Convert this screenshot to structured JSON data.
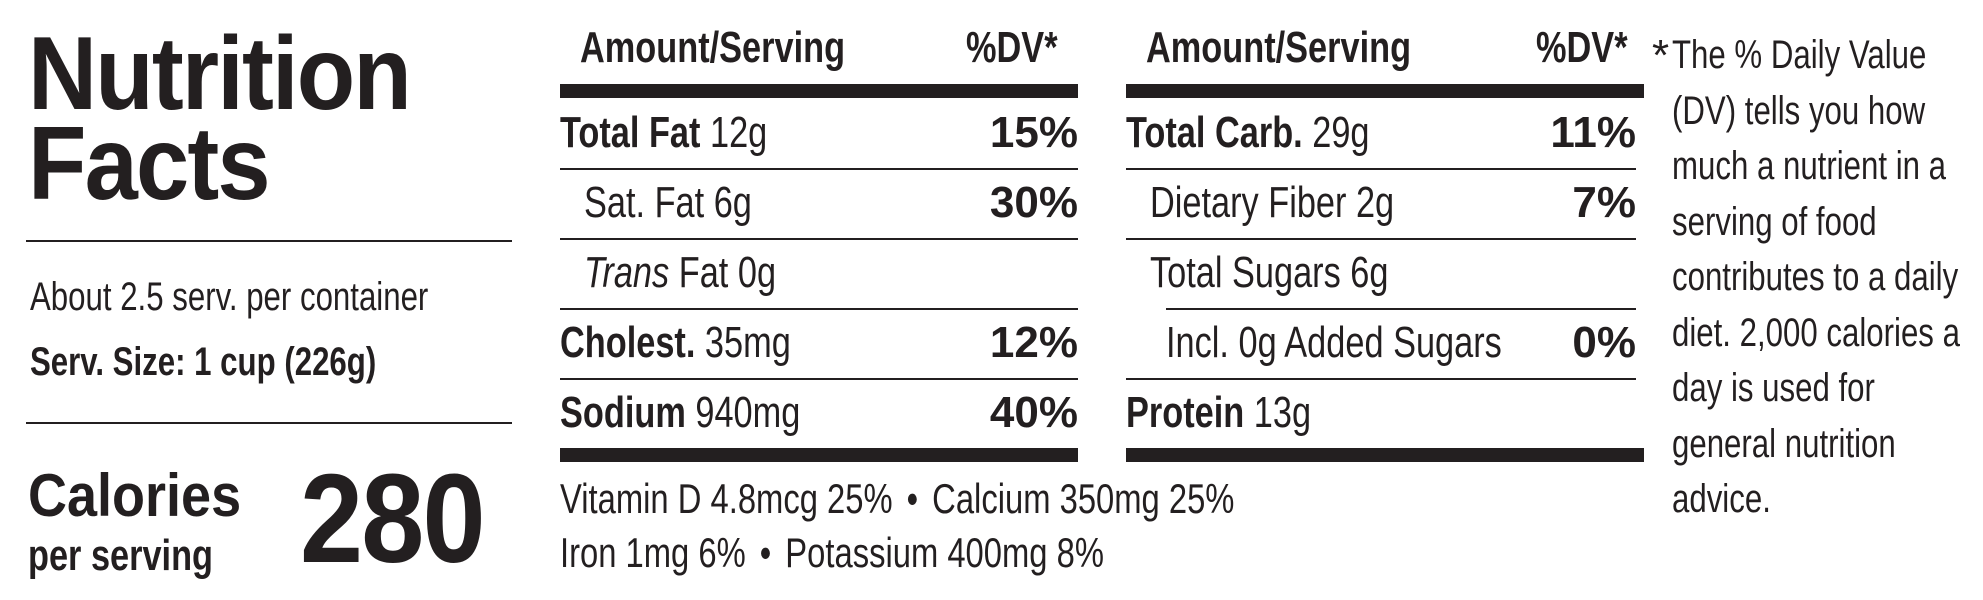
{
  "title_line1": "Nutrition",
  "title_line2": "Facts",
  "servings_per_container": "About 2.5 serv. per container",
  "serving_size": "Serv. Size: 1 cup (226g)",
  "calories_label": "Calories",
  "calories_sublabel": "per serving",
  "calories_value": "280",
  "left_table": {
    "header_amount": "Amount/Serving",
    "header_dv": "%DV*",
    "rows": [
      {
        "name_bold": "Total Fat",
        "amount": "12g",
        "dv": "15%"
      },
      {
        "name_bold": "",
        "amount": "Sat. Fat 6g",
        "dv": "30%"
      },
      {
        "name_italic": "Trans",
        "amount": "Fat 0g",
        "dv": ""
      },
      {
        "name_bold": "Cholest.",
        "amount": "35mg",
        "dv": "12%"
      },
      {
        "name_bold": "Sodium",
        "amount": "940mg",
        "dv": "40%"
      }
    ]
  },
  "right_table": {
    "header_amount": "Amount/Serving",
    "header_dv": "%DV*",
    "rows": [
      {
        "name_bold": "Total Carb.",
        "amount": "29g",
        "dv": "11%"
      },
      {
        "name_bold": "",
        "amount": "Dietary Fiber 2g",
        "dv": "7%"
      },
      {
        "name_bold": "",
        "amount": "Total Sugars 6g",
        "dv": ""
      },
      {
        "name_bold": "",
        "amount": "Incl. 0g Added Sugars",
        "dv": "0%"
      },
      {
        "name_bold": "Protein",
        "amount": "13g",
        "dv": ""
      }
    ]
  },
  "vitamins_line1": {
    "a": "Vitamin D 4.8mcg 25%",
    "sep": "•",
    "b": "Calcium 350mg 25%"
  },
  "vitamins_line2": {
    "a": "Iron 1mg 6%",
    "sep": "•",
    "b": "Potassium 400mg 8%"
  },
  "footnote_star": "*",
  "footnote": "The % Daily Value (DV) tells you how much a nutrient in a serving of food contributes to a daily diet. 2,000 calories a day is used for general nutrition advice."
}
